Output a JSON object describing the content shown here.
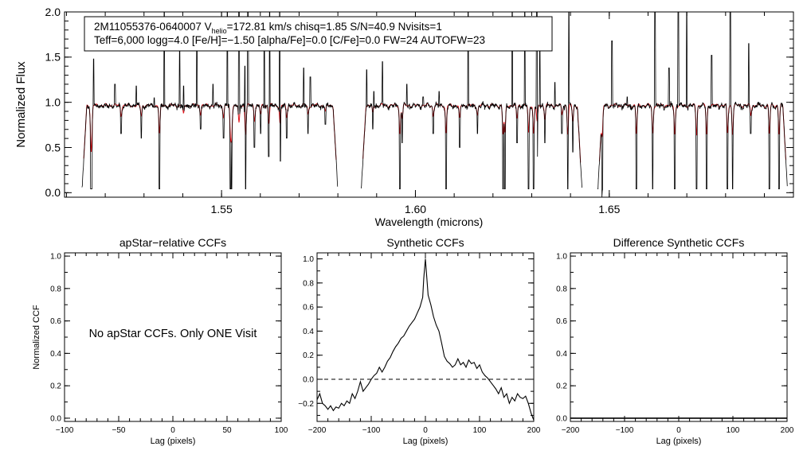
{
  "colors": {
    "observed": "#000000",
    "model": "#e0141b",
    "axis": "#000000",
    "background": "#ffffff"
  },
  "spectrum": {
    "info_line1": {
      "star_id": "2M11055376-0640007",
      "v": "V",
      "v_sub": "helio",
      "v_rest": "=172.81 km/s  chisq=1.85  S/N=40.9  Nvisits=1"
    },
    "info_line2": "Teff=6,000 logg=4.0 [Fe/H]=−1.50 [alpha/Fe]=0.0 [C/Fe]=0.0 FW=24 AUTOFW=23"
  },
  "panels": {
    "apstar": {
      "message": "No apStar CCFs.  Only ONE Visit"
    }
  },
  "chart_data": [
    {
      "id": "spectrum",
      "type": "line",
      "title": "",
      "xlabel": "Wavelength (microns)",
      "ylabel": "Normalized Flux",
      "xlim": [
        1.5095,
        1.6975
      ],
      "ylim": [
        -0.05,
        2.0
      ],
      "xticks": [
        1.55,
        1.6,
        1.65
      ],
      "xtick_labels": [
        "1.55",
        "1.60",
        "1.65"
      ],
      "yticks": [
        0.0,
        0.5,
        1.0,
        1.5,
        2.0
      ],
      "ytick_labels": [
        "0.0",
        "0.5",
        "1.0",
        "1.5",
        "2.0"
      ],
      "chips": [
        [
          1.514,
          1.58
        ],
        [
          1.586,
          1.643
        ],
        [
          1.647,
          1.696
        ]
      ],
      "continuum_level": 0.96,
      "absorption_lines": [
        {
          "x": 1.5163,
          "depth": 0.9
        },
        {
          "x": 1.5165,
          "depth": 0.9
        },
        {
          "x": 1.5241,
          "depth": 0.3
        },
        {
          "x": 1.5293,
          "depth": 0.35
        },
        {
          "x": 1.534,
          "depth": 0.9
        },
        {
          "x": 1.5402,
          "depth": 0.3
        },
        {
          "x": 1.5446,
          "depth": 0.25
        },
        {
          "x": 1.5505,
          "depth": 0.35
        },
        {
          "x": 1.5523,
          "depth": 0.9
        },
        {
          "x": 1.5526,
          "depth": 0.9
        },
        {
          "x": 1.5545,
          "depth": 0.6
        },
        {
          "x": 1.5562,
          "depth": 0.9
        },
        {
          "x": 1.5585,
          "depth": 0.45
        },
        {
          "x": 1.5601,
          "depth": 0.3
        },
        {
          "x": 1.5622,
          "depth": 0.55
        },
        {
          "x": 1.5651,
          "depth": 0.6
        },
        {
          "x": 1.5668,
          "depth": 0.35
        },
        {
          "x": 1.5723,
          "depth": 0.3
        },
        {
          "x": 1.5768,
          "depth": 0.2
        },
        {
          "x": 1.589,
          "depth": 0.25
        },
        {
          "x": 1.596,
          "depth": 0.9
        },
        {
          "x": 1.5966,
          "depth": 0.4
        },
        {
          "x": 1.6046,
          "depth": 0.3
        },
        {
          "x": 1.6079,
          "depth": 0.9
        },
        {
          "x": 1.6114,
          "depth": 0.45
        },
        {
          "x": 1.616,
          "depth": 0.3
        },
        {
          "x": 1.6226,
          "depth": 0.9
        },
        {
          "x": 1.6231,
          "depth": 0.9
        },
        {
          "x": 1.6262,
          "depth": 0.4
        },
        {
          "x": 1.6292,
          "depth": 0.9
        },
        {
          "x": 1.6305,
          "depth": 0.9
        },
        {
          "x": 1.6314,
          "depth": 0.55
        },
        {
          "x": 1.6334,
          "depth": 0.4
        },
        {
          "x": 1.6378,
          "depth": 0.3
        },
        {
          "x": 1.6393,
          "depth": 0.9
        },
        {
          "x": 1.6406,
          "depth": 0.5
        },
        {
          "x": 1.6482,
          "depth": 0.9
        },
        {
          "x": 1.657,
          "depth": 0.9
        },
        {
          "x": 1.6612,
          "depth": 0.9
        },
        {
          "x": 1.6669,
          "depth": 0.9
        },
        {
          "x": 1.6725,
          "depth": 0.9
        },
        {
          "x": 1.6751,
          "depth": 0.9
        },
        {
          "x": 1.6805,
          "depth": 0.9
        },
        {
          "x": 1.6818,
          "depth": 0.9
        },
        {
          "x": 1.6865,
          "depth": 0.3
        },
        {
          "x": 1.6913,
          "depth": 0.9
        },
        {
          "x": 1.6938,
          "depth": 0.9
        }
      ],
      "emission_spikes": [
        {
          "x": 1.517,
          "height": 1.48
        },
        {
          "x": 1.5225,
          "height": 1.2
        },
        {
          "x": 1.528,
          "height": 1.18
        },
        {
          "x": 1.5326,
          "height": 1.05
        },
        {
          "x": 1.5352,
          "height": 2.0
        },
        {
          "x": 1.5392,
          "height": 1.6
        },
        {
          "x": 1.5402,
          "height": 1.18
        },
        {
          "x": 1.5436,
          "height": 1.82
        },
        {
          "x": 1.5478,
          "height": 1.2
        },
        {
          "x": 1.5515,
          "height": 2.0
        },
        {
          "x": 1.5545,
          "height": 2.0
        },
        {
          "x": 1.556,
          "height": 1.4
        },
        {
          "x": 1.5568,
          "height": 2.0
        },
        {
          "x": 1.561,
          "height": 1.85
        },
        {
          "x": 1.5624,
          "height": 2.0
        },
        {
          "x": 1.565,
          "height": 2.0
        },
        {
          "x": 1.5712,
          "height": 1.38
        },
        {
          "x": 1.5729,
          "height": 1.28
        },
        {
          "x": 1.5874,
          "height": 1.36
        },
        {
          "x": 1.5893,
          "height": 1.12
        },
        {
          "x": 1.5915,
          "height": 1.45
        },
        {
          "x": 1.5978,
          "height": 1.2
        },
        {
          "x": 1.602,
          "height": 1.06
        },
        {
          "x": 1.6061,
          "height": 1.12
        },
        {
          "x": 1.6136,
          "height": 2.0
        },
        {
          "x": 1.625,
          "height": 2.0
        },
        {
          "x": 1.6282,
          "height": 2.0
        },
        {
          "x": 1.6313,
          "height": 2.0
        },
        {
          "x": 1.6321,
          "height": 1.6
        },
        {
          "x": 1.636,
          "height": 1.22
        },
        {
          "x": 1.6396,
          "height": 2.0
        },
        {
          "x": 1.645,
          "height": 2.0
        },
        {
          "x": 1.6463,
          "height": 2.0
        },
        {
          "x": 1.6507,
          "height": 1.68
        },
        {
          "x": 1.6546,
          "height": 1.06
        },
        {
          "x": 1.6618,
          "height": 2.0
        },
        {
          "x": 1.6654,
          "height": 1.38
        },
        {
          "x": 1.6678,
          "height": 2.0
        },
        {
          "x": 1.67,
          "height": 2.0
        },
        {
          "x": 1.6764,
          "height": 1.52
        },
        {
          "x": 1.6812,
          "height": 2.0
        },
        {
          "x": 1.686,
          "height": 1.65
        }
      ],
      "series": [
        {
          "name": "observed",
          "color": "#000000"
        },
        {
          "name": "model",
          "color": "#e0141b"
        }
      ]
    },
    {
      "id": "apstar_ccf",
      "type": "line",
      "title": "apStar−relative CCFs",
      "xlabel": "Lag (pixels)",
      "ylabel": "Normalized CCF",
      "xlim": [
        -100,
        100
      ],
      "ylim": [
        -0.02,
        1.02
      ],
      "xticks": [
        -100,
        -50,
        0,
        50,
        100
      ],
      "xtick_labels": [
        "−100",
        "−50",
        "0",
        "50",
        "100"
      ],
      "yticks": [
        0.0,
        0.2,
        0.4,
        0.6,
        0.8,
        1.0
      ],
      "ytick_labels": [
        "0.0",
        "0.2",
        "0.4",
        "0.6",
        "0.8",
        "1.0"
      ],
      "series": []
    },
    {
      "id": "synthetic_ccf",
      "type": "line",
      "title": "Synthetic CCFs",
      "xlabel": "Lag (pixels)",
      "ylabel": "",
      "xlim": [
        -200,
        200
      ],
      "ylim": [
        -0.35,
        1.05
      ],
      "xticks": [
        -200,
        -100,
        0,
        100,
        200
      ],
      "xtick_labels": [
        "−200",
        "−100",
        "0",
        "100",
        "200"
      ],
      "yticks": [
        -0.2,
        0.0,
        0.2,
        0.4,
        0.6,
        0.8,
        1.0
      ],
      "ytick_labels": [
        "−0.2",
        "0.0",
        "0.2",
        "0.4",
        "0.6",
        "0.8",
        "1.0"
      ],
      "reference_line": {
        "y": 0.0,
        "style": "dashed"
      },
      "series": [
        {
          "name": "synthetic",
          "x": [
            -200,
            -195,
            -190,
            -185,
            -180,
            -175,
            -170,
            -165,
            -160,
            -155,
            -150,
            -145,
            -140,
            -135,
            -130,
            -125,
            -120,
            -115,
            -110,
            -105,
            -100,
            -95,
            -90,
            -85,
            -80,
            -75,
            -70,
            -65,
            -60,
            -55,
            -50,
            -45,
            -40,
            -35,
            -30,
            -25,
            -20,
            -15,
            -10,
            -5,
            -3,
            0,
            3,
            5,
            10,
            15,
            20,
            25,
            30,
            35,
            40,
            45,
            50,
            55,
            60,
            65,
            70,
            75,
            80,
            85,
            90,
            95,
            100,
            105,
            110,
            115,
            120,
            125,
            130,
            135,
            140,
            145,
            150,
            155,
            160,
            165,
            170,
            175,
            180,
            185,
            190,
            195,
            200
          ],
          "y": [
            -0.17,
            -0.12,
            -0.2,
            -0.22,
            -0.25,
            -0.22,
            -0.26,
            -0.23,
            -0.24,
            -0.2,
            -0.22,
            -0.18,
            -0.2,
            -0.12,
            -0.16,
            -0.1,
            -0.02,
            -0.1,
            -0.07,
            -0.04,
            0.0,
            0.03,
            0.05,
            0.1,
            0.06,
            0.1,
            0.15,
            0.18,
            0.23,
            0.27,
            0.3,
            0.34,
            0.36,
            0.4,
            0.44,
            0.47,
            0.5,
            0.55,
            0.6,
            0.68,
            0.84,
            1.0,
            0.82,
            0.7,
            0.62,
            0.52,
            0.45,
            0.4,
            0.3,
            0.19,
            0.15,
            0.13,
            0.1,
            0.12,
            0.17,
            0.12,
            0.14,
            0.1,
            0.16,
            0.13,
            0.14,
            0.09,
            0.12,
            0.06,
            0.03,
            0.01,
            -0.02,
            -0.05,
            -0.08,
            -0.12,
            -0.07,
            -0.15,
            -0.12,
            -0.2,
            -0.15,
            -0.18,
            -0.12,
            -0.15,
            -0.16,
            -0.14,
            -0.2,
            -0.28,
            -0.34
          ]
        }
      ]
    },
    {
      "id": "difference_ccf",
      "type": "line",
      "title": "Difference Synthetic CCFs",
      "xlabel": "Lag (pixels)",
      "ylabel": "",
      "xlim": [
        -200,
        200
      ],
      "ylim": [
        -0.02,
        1.02
      ],
      "xticks": [
        -200,
        -100,
        0,
        100,
        200
      ],
      "xtick_labels": [
        "−200",
        "−100",
        "0",
        "100",
        "200"
      ],
      "yticks": [
        0.0,
        0.2,
        0.4,
        0.6,
        0.8,
        1.0
      ],
      "ytick_labels": [
        "0.0",
        "0.2",
        "0.4",
        "0.6",
        "0.8",
        "1.0"
      ],
      "series": [
        {
          "name": "difference",
          "x": [
            -200,
            200
          ],
          "y": [
            0.0,
            0.0
          ]
        }
      ]
    }
  ]
}
